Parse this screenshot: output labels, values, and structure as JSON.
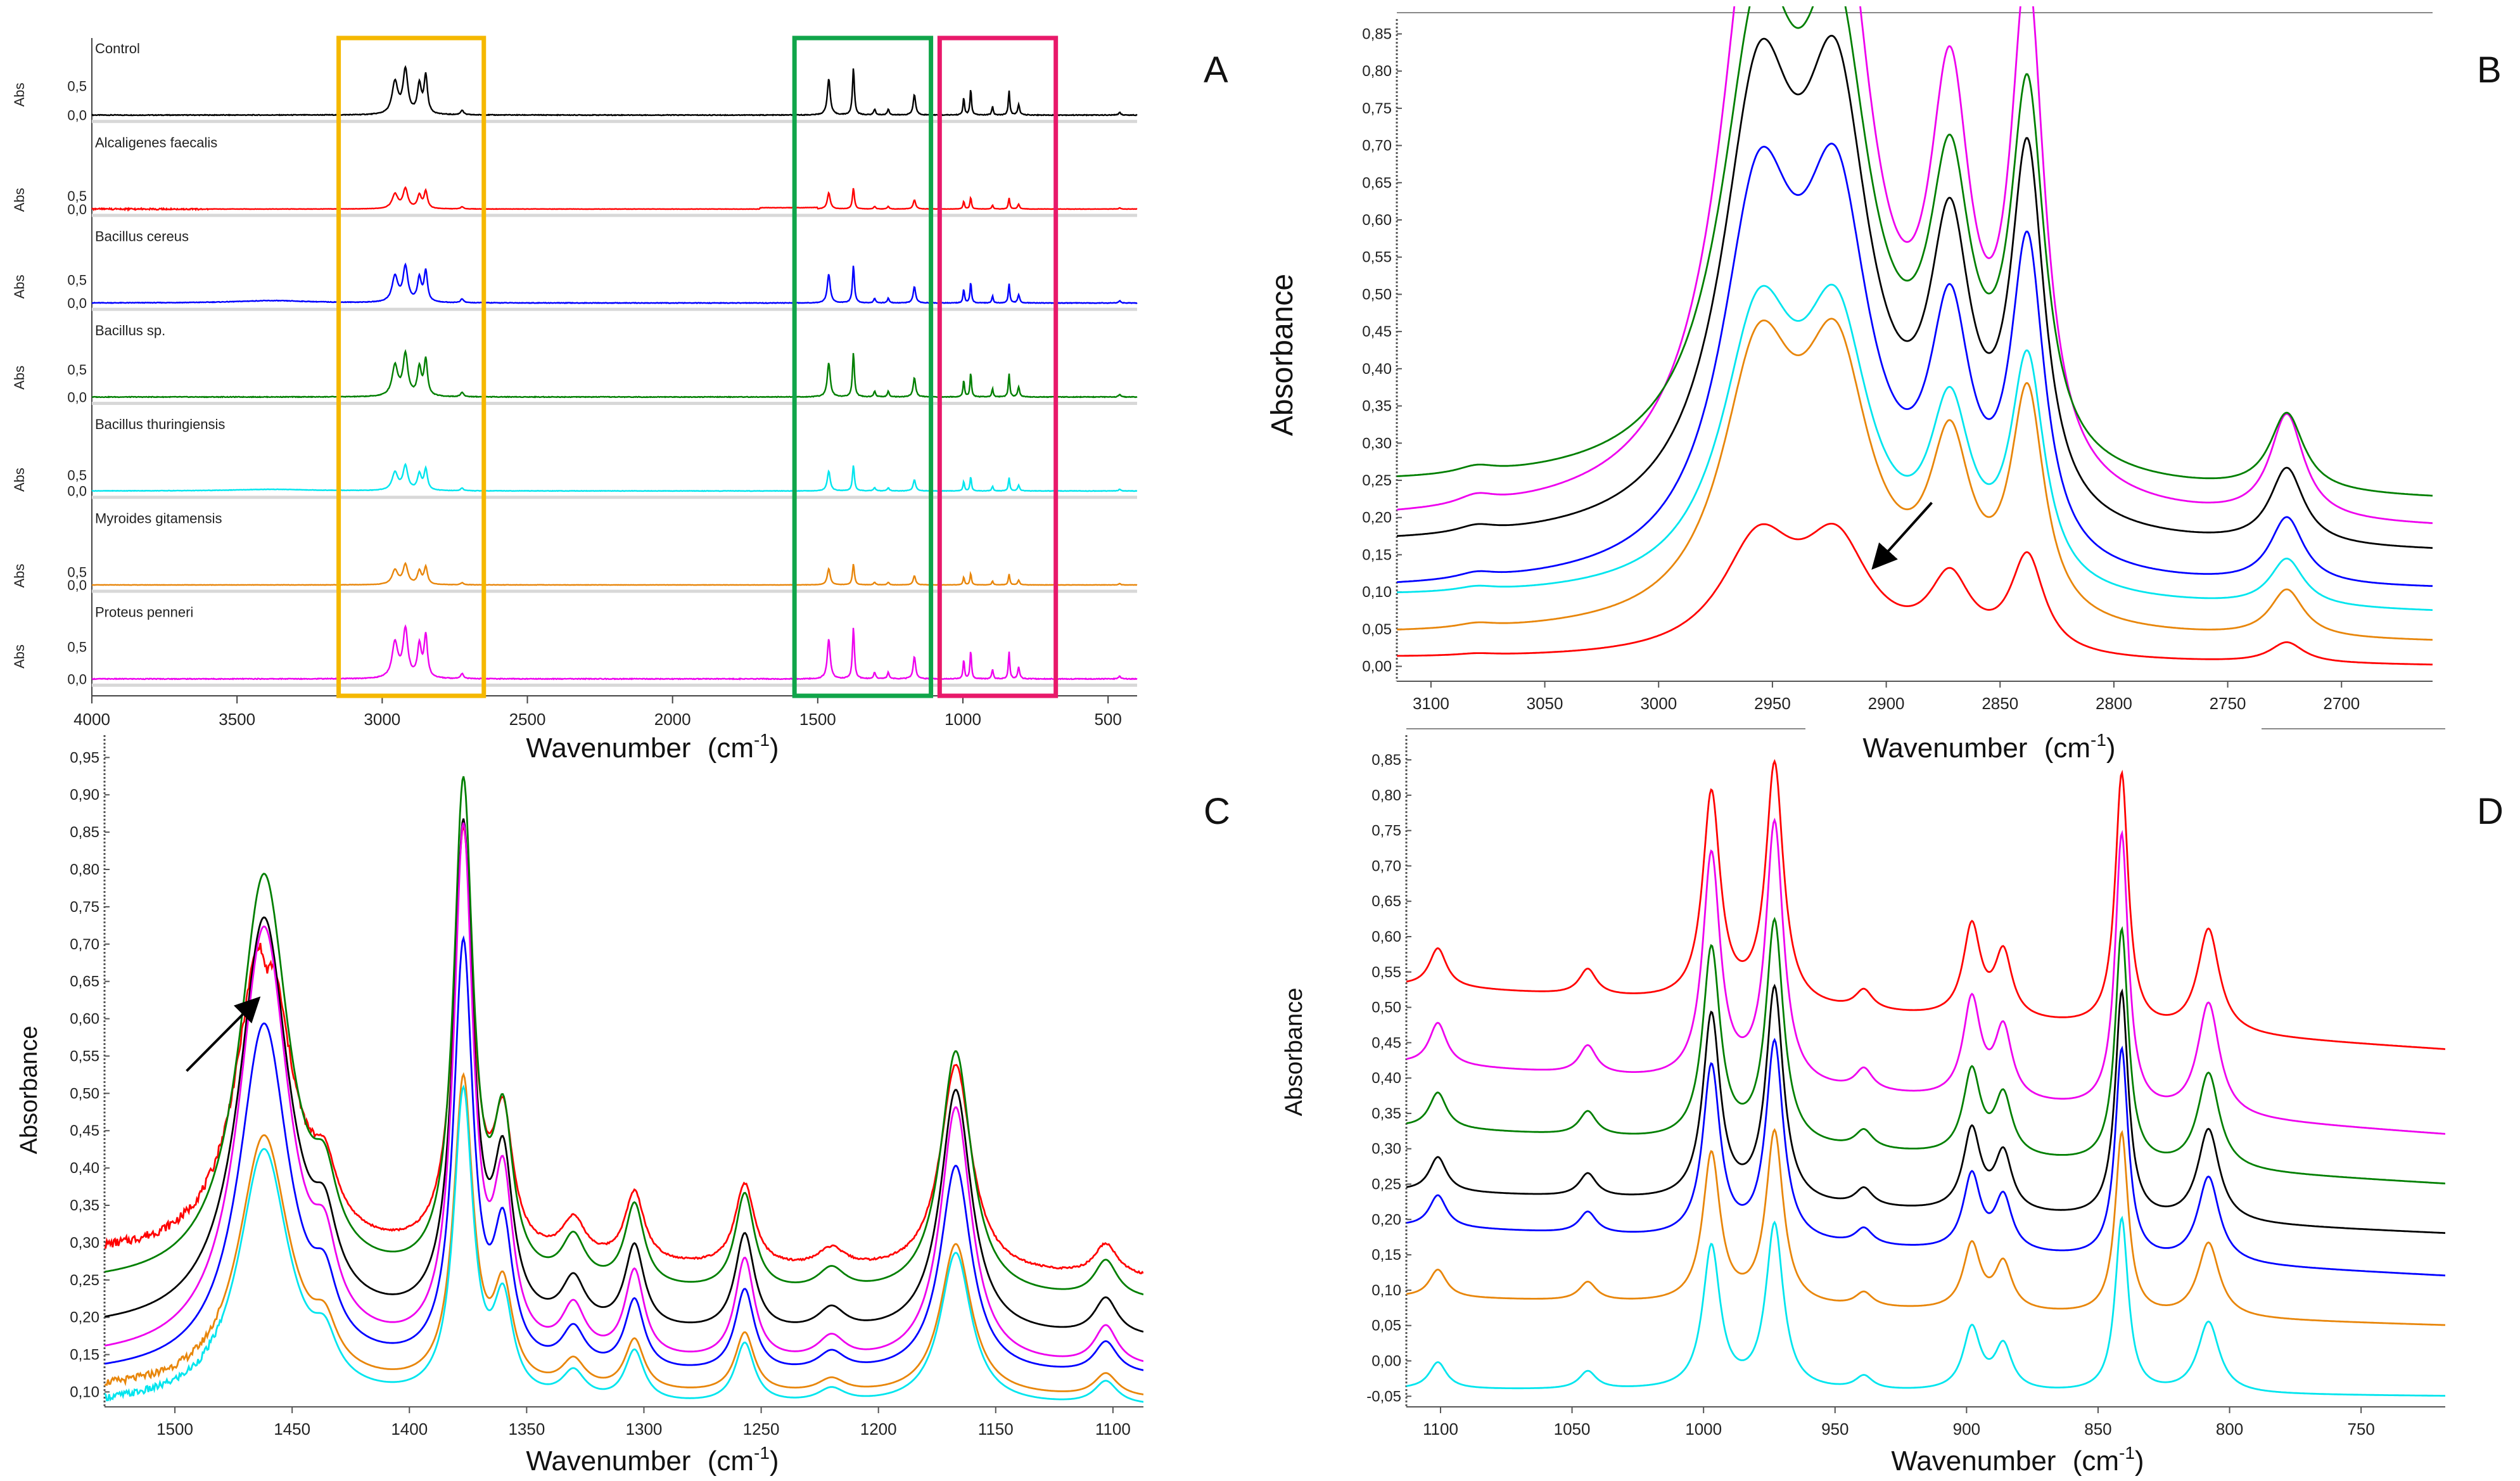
{
  "colors": {
    "black": "#000000",
    "red": "#ff0000",
    "blue": "#0000ff",
    "green": "#007f00",
    "cyan": "#00e5ee",
    "orange": "#e8860b",
    "magenta": "#ee00ee",
    "box_yellow": "#f5b800",
    "box_green": "#10a54a",
    "box_pink": "#e8196a"
  },
  "chart_data": [
    {
      "panel": "A",
      "type": "line",
      "xlabel_main": "Wavenumber",
      "xlabel_unit": "(cm",
      "xlabel_sup": "-1",
      "xlabel_close": ")",
      "xlim": [
        4000,
        400
      ],
      "xticks": [
        "4000",
        "3500",
        "3000",
        "2500",
        "2000",
        "1500",
        "1000",
        "500"
      ],
      "ylabel": "Abs",
      "yticks": [
        "0,5",
        "0,0"
      ],
      "highlight_boxes": [
        {
          "from_wavenumber": 3150,
          "to_wavenumber": 2650,
          "color": "box_yellow"
        },
        {
          "from_wavenumber": 1580,
          "to_wavenumber": 1110,
          "color": "box_green"
        },
        {
          "from_wavenumber": 1080,
          "to_wavenumber": 680,
          "color": "box_pink"
        }
      ],
      "series": [
        {
          "name": "Control",
          "color": "black",
          "peak_scale": 1.0
        },
        {
          "name": "Alcaligenes faecalis",
          "color": "red",
          "peak_scale": 0.45
        },
        {
          "name": "Bacillus cereus",
          "color": "blue",
          "peak_scale": 0.8
        },
        {
          "name": "Bacillus sp.",
          "color": "green",
          "peak_scale": 0.95
        },
        {
          "name": "Bacillus thuringiensis",
          "color": "cyan",
          "peak_scale": 0.55
        },
        {
          "name": "Myroides gitamensis",
          "color": "orange",
          "peak_scale": 0.45
        },
        {
          "name": "Proteus penneri",
          "color": "magenta",
          "peak_scale": 1.1
        }
      ]
    },
    {
      "panel": "B",
      "type": "line",
      "xlabel_main": "Wavenumber",
      "xlabel_unit": "(cm",
      "xlabel_sup": "-1",
      "xlabel_close": ")",
      "ylabel": "Absorbance",
      "xlim": [
        3115,
        2660
      ],
      "ylim": [
        -0.02,
        0.87
      ],
      "xticks": [
        "3100",
        "3050",
        "3000",
        "2950",
        "2900",
        "2850",
        "2800",
        "2750",
        "2700"
      ],
      "yticks": [
        "0,00",
        "0,05",
        "0,10",
        "0,15",
        "0,20",
        "0,25",
        "0,30",
        "0,35",
        "0,40",
        "0,45",
        "0,50",
        "0,55",
        "0,60",
        "0,65",
        "0,70",
        "0,75",
        "0,80",
        "0,85"
      ],
      "peaks": [
        {
          "x": 3080,
          "w": 10,
          "h": 0.01
        },
        {
          "x": 2956,
          "w": 20,
          "h": 0.6
        },
        {
          "x": 2922,
          "w": 18,
          "h": 0.56
        },
        {
          "x": 2872,
          "w": 11,
          "h": 0.38
        },
        {
          "x": 2838,
          "w": 9,
          "h": 0.52
        },
        {
          "x": 2724,
          "w": 9,
          "h": 0.11
        }
      ],
      "series": [
        {
          "name": "magenta",
          "color": "magenta",
          "baseline": [
            0.19,
            0.18
          ],
          "scale": 1.27,
          "valley_depth": 0.16
        },
        {
          "name": "green",
          "color": "green",
          "baseline": [
            0.24,
            0.22
          ],
          "scale": 0.95,
          "valley_depth": 0.1
        },
        {
          "name": "black",
          "color": "black",
          "baseline": [
            0.16,
            0.15
          ],
          "scale": 0.93,
          "valley_depth": 0.11
        },
        {
          "name": "blue",
          "color": "blue",
          "baseline": [
            0.1,
            0.1
          ],
          "scale": 0.81,
          "valley_depth": 0.1
        },
        {
          "name": "cyan",
          "color": "cyan",
          "baseline": [
            0.09,
            0.07
          ],
          "scale": 0.58,
          "valley_depth": 0.06
        },
        {
          "name": "orange",
          "color": "orange",
          "baseline": [
            0.04,
            0.03
          ],
          "scale": 0.58,
          "valley_depth": 0.06
        },
        {
          "name": "red",
          "color": "red",
          "baseline": [
            0.01,
            0.0
          ],
          "scale": 0.25,
          "valley_depth": 0.02
        }
      ],
      "arrow": {
        "from": [
          2880,
          0.22
        ],
        "to": [
          2905,
          0.135
        ]
      }
    },
    {
      "panel": "C",
      "type": "line",
      "xlabel_main": "Wavenumber",
      "xlabel_unit": "(cm",
      "xlabel_sup": "-1",
      "xlabel_close": ")",
      "ylabel": "Absorbance",
      "xlim": [
        1530,
        1087
      ],
      "ylim": [
        0.08,
        0.98
      ],
      "xticks": [
        "1500",
        "1450",
        "1400",
        "1350",
        "1300",
        "1250",
        "1200",
        "1150",
        "1100"
      ],
      "yticks": [
        "0,10",
        "0,15",
        "0,20",
        "0,25",
        "0,30",
        "0,35",
        "0,40",
        "0,45",
        "0,50",
        "0,55",
        "0,60",
        "0,65",
        "0,70",
        "0,75",
        "0,80",
        "0,85",
        "0,90",
        "0,95"
      ],
      "peaks": [
        {
          "x": 1462,
          "w": 13,
          "h": 0.55
        },
        {
          "x": 1436,
          "w": 6,
          "h": 0.08
        },
        {
          "x": 1377,
          "w": 5,
          "h": 0.66
        },
        {
          "x": 1360,
          "w": 5,
          "h": 0.2
        },
        {
          "x": 1330,
          "w": 6,
          "h": 0.06
        },
        {
          "x": 1304,
          "w": 5,
          "h": 0.11
        },
        {
          "x": 1257,
          "w": 5,
          "h": 0.13
        },
        {
          "x": 1220,
          "w": 7,
          "h": 0.03
        },
        {
          "x": 1167,
          "w": 8,
          "h": 0.33
        },
        {
          "x": 1103,
          "w": 6,
          "h": 0.05
        }
      ],
      "series": [
        {
          "name": "red",
          "color": "red",
          "baseline": [
            0.28,
            0.25
          ],
          "scale": 0.85
        },
        {
          "name": "green",
          "color": "green",
          "baseline": [
            0.24,
            0.22
          ],
          "scale": 1.0
        },
        {
          "name": "black",
          "color": "black",
          "baseline": [
            0.18,
            0.17
          ],
          "scale": 1.0
        },
        {
          "name": "magenta",
          "color": "magenta",
          "baseline": [
            0.14,
            0.13
          ],
          "scale": 1.05
        },
        {
          "name": "blue",
          "color": "blue",
          "baseline": [
            0.12,
            0.12
          ],
          "scale": 0.85
        },
        {
          "name": "orange",
          "color": "orange",
          "baseline": [
            0.1,
            0.09
          ],
          "scale": 0.62
        },
        {
          "name": "cyan",
          "color": "cyan",
          "baseline": [
            0.08,
            0.08
          ],
          "scale": 0.62
        }
      ],
      "arrow": {
        "from": [
          1495,
          0.53
        ],
        "to": [
          1465,
          0.625
        ]
      }
    },
    {
      "panel": "D",
      "type": "line",
      "xlabel_main": "Wavenumber",
      "xlabel_unit": "(cm",
      "xlabel_sup": "-1",
      "xlabel_close": ")",
      "ylabel": "Absorbance",
      "xlim": [
        1113,
        718
      ],
      "ylim": [
        -0.065,
        0.885
      ],
      "xticks": [
        "1100",
        "1050",
        "1000",
        "950",
        "900",
        "850",
        "800",
        "750"
      ],
      "yticks": [
        "-0,05",
        "0,00",
        "0,05",
        "0,10",
        "0,15",
        "0,20",
        "0,25",
        "0,30",
        "0,35",
        "0,40",
        "0,45",
        "0,50",
        "0,55",
        "0,60",
        "0,65",
        "0,70",
        "0,75",
        "0,80",
        "0,85"
      ],
      "peaks": [
        {
          "x": 1101,
          "w": 4,
          "h": 0.06
        },
        {
          "x": 1044,
          "w": 4,
          "h": 0.04
        },
        {
          "x": 997,
          "w": 4,
          "h": 0.32
        },
        {
          "x": 973,
          "w": 4,
          "h": 0.37
        },
        {
          "x": 939,
          "w": 4,
          "h": 0.03
        },
        {
          "x": 898,
          "w": 4,
          "h": 0.14
        },
        {
          "x": 886,
          "w": 4,
          "h": 0.1
        },
        {
          "x": 841,
          "w": 3,
          "h": 0.39
        },
        {
          "x": 808,
          "w": 5,
          "h": 0.16
        }
      ],
      "series": [
        {
          "name": "red",
          "color": "red",
          "baseline": [
            0.53,
            0.44
          ],
          "scale": 0.92
        },
        {
          "name": "magenta",
          "color": "magenta",
          "baseline": [
            0.42,
            0.32
          ],
          "scale": 1.0
        },
        {
          "name": "green",
          "color": "green",
          "baseline": [
            0.33,
            0.25
          ],
          "scale": 0.85
        },
        {
          "name": "black",
          "color": "black",
          "baseline": [
            0.24,
            0.18
          ],
          "scale": 0.82
        },
        {
          "name": "blue",
          "color": "blue",
          "baseline": [
            0.19,
            0.12
          ],
          "scale": 0.76
        },
        {
          "name": "orange",
          "color": "orange",
          "baseline": [
            0.09,
            0.05
          ],
          "scale": 0.66
        },
        {
          "name": "cyan",
          "color": "cyan",
          "baseline": [
            -0.04,
            -0.05
          ],
          "scale": 0.63
        }
      ]
    }
  ]
}
